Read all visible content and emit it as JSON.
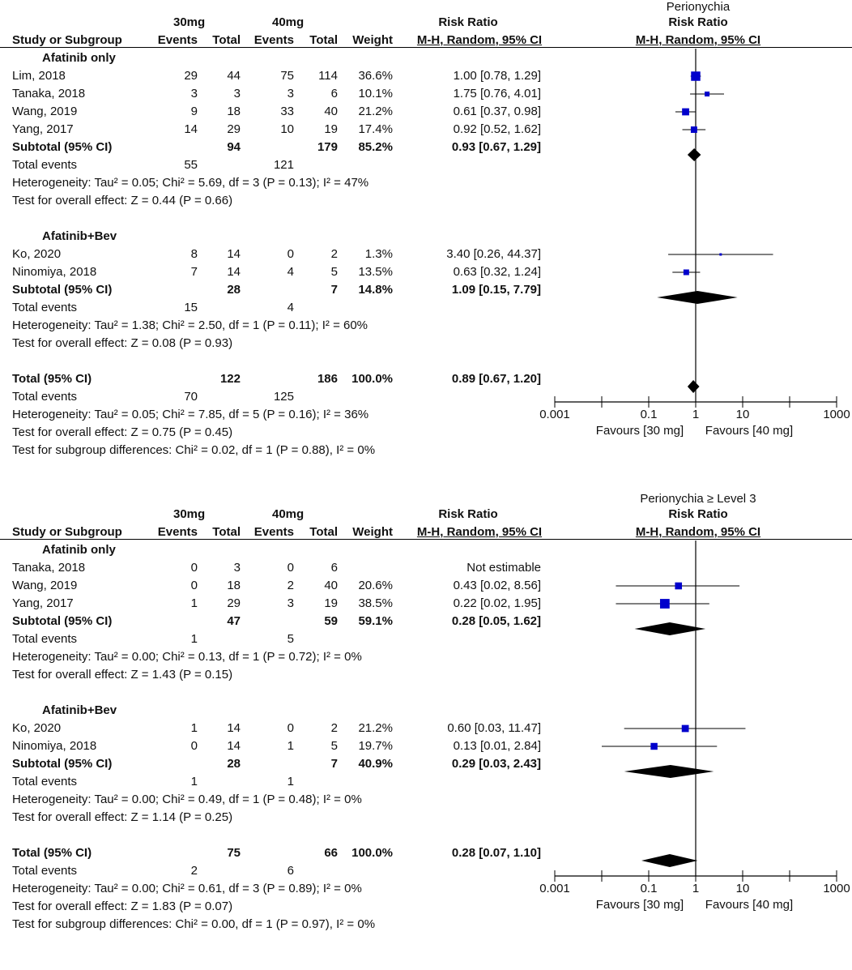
{
  "chart_data": [
    {
      "type": "forest",
      "title": "Perionychia",
      "header": {
        "group1": "30mg",
        "group2": "40mg",
        "col_study": "Study or Subgroup",
        "col_events": "Events",
        "col_total": "Total",
        "col_weight": "Weight",
        "rr_title": "Risk Ratio",
        "rr_method": "M-H, Random, 95% CI",
        "plot_title": "Risk Ratio",
        "plot_method": "M-H, Random, 95% CI"
      },
      "rows": [
        {
          "kind": "subgroup",
          "label": "Afatinib only"
        },
        {
          "kind": "study",
          "label": "Lim, 2018",
          "e1": "29",
          "n1": "44",
          "e2": "75",
          "n2": "114",
          "weight": "36.6%",
          "ci": "1.00 [0.78, 1.29]",
          "rr": 1.0,
          "lo": 0.78,
          "hi": 1.29,
          "w": 36.6
        },
        {
          "kind": "study",
          "label": "Tanaka, 2018",
          "e1": "3",
          "n1": "3",
          "e2": "3",
          "n2": "6",
          "weight": "10.1%",
          "ci": "1.75 [0.76, 4.01]",
          "rr": 1.75,
          "lo": 0.76,
          "hi": 4.01,
          "w": 10.1
        },
        {
          "kind": "study",
          "label": "Wang, 2019",
          "e1": "9",
          "n1": "18",
          "e2": "33",
          "n2": "40",
          "weight": "21.2%",
          "ci": "0.61 [0.37, 0.98]",
          "rr": 0.61,
          "lo": 0.37,
          "hi": 0.98,
          "w": 21.2
        },
        {
          "kind": "study",
          "label": "Yang, 2017",
          "e1": "14",
          "n1": "29",
          "e2": "10",
          "n2": "19",
          "weight": "17.4%",
          "ci": "0.92 [0.52, 1.62]",
          "rr": 0.92,
          "lo": 0.52,
          "hi": 1.62,
          "w": 17.4
        },
        {
          "kind": "subtotal",
          "label": "Subtotal (95% CI)",
          "n1": "94",
          "n2": "179",
          "weight": "85.2%",
          "ci": "0.93 [0.67, 1.29]",
          "rr": 0.93,
          "lo": 0.67,
          "hi": 1.29
        },
        {
          "kind": "events",
          "label": "Total events",
          "e1": "55",
          "e2": "121"
        },
        {
          "kind": "text",
          "label": "Heterogeneity: Tau² = 0.05; Chi² = 5.69, df = 3 (P = 0.13); I² = 47%"
        },
        {
          "kind": "text",
          "label": "Test for overall effect: Z = 0.44 (P = 0.66)"
        },
        {
          "kind": "blank"
        },
        {
          "kind": "subgroup",
          "label": "Afatinib+Bev"
        },
        {
          "kind": "study",
          "label": "Ko, 2020",
          "e1": "8",
          "n1": "14",
          "e2": "0",
          "n2": "2",
          "weight": "1.3%",
          "ci": "3.40 [0.26, 44.37]",
          "rr": 3.4,
          "lo": 0.26,
          "hi": 44.37,
          "w": 1.3
        },
        {
          "kind": "study",
          "label": "Ninomiya, 2018",
          "e1": "7",
          "n1": "14",
          "e2": "4",
          "n2": "5",
          "weight": "13.5%",
          "ci": "0.63 [0.32, 1.24]",
          "rr": 0.63,
          "lo": 0.32,
          "hi": 1.24,
          "w": 13.5
        },
        {
          "kind": "subtotal",
          "label": "Subtotal (95% CI)",
          "n1": "28",
          "n2": "7",
          "weight": "14.8%",
          "ci": "1.09 [0.15, 7.79]",
          "rr": 1.09,
          "lo": 0.15,
          "hi": 7.79
        },
        {
          "kind": "events",
          "label": "Total events",
          "e1": "15",
          "e2": "4"
        },
        {
          "kind": "text",
          "label": "Heterogeneity: Tau² = 1.38; Chi² = 2.50, df = 1 (P = 0.11); I² = 60%"
        },
        {
          "kind": "text",
          "label": "Test for overall effect: Z = 0.08 (P = 0.93)"
        },
        {
          "kind": "blank"
        },
        {
          "kind": "total",
          "label": "Total (95% CI)",
          "n1": "122",
          "n2": "186",
          "weight": "100.0%",
          "ci": "0.89 [0.67, 1.20]",
          "rr": 0.89,
          "lo": 0.67,
          "hi": 1.2
        },
        {
          "kind": "events",
          "label": "Total events",
          "e1": "70",
          "e2": "125"
        },
        {
          "kind": "text",
          "label": "Heterogeneity: Tau² = 0.05; Chi² = 7.85, df = 5 (P = 0.16); I² = 36%"
        },
        {
          "kind": "text",
          "label": "Test for overall effect: Z = 0.75 (P = 0.45)"
        },
        {
          "kind": "text",
          "label": "Test for subgroup differences: Chi² = 0.02, df = 1 (P = 0.88), I² = 0%"
        }
      ],
      "axis": {
        "scale": "log",
        "ticks": [
          "0.001",
          "0.1",
          "1",
          "10",
          "1000"
        ],
        "tick_values": [
          0.001,
          0.1,
          1,
          10,
          1000
        ],
        "favours_left": "Favours [30 mg]",
        "favours_right": "Favours [40 mg]"
      }
    },
    {
      "type": "forest",
      "title": "Perionychia ≥ Level 3",
      "header": {
        "group1": "30mg",
        "group2": "40mg",
        "col_study": "Study or Subgroup",
        "col_events": "Events",
        "col_total": "Total",
        "col_weight": "Weight",
        "rr_title": "Risk Ratio",
        "rr_method": "M-H, Random, 95% CI",
        "plot_title": "Risk Ratio",
        "plot_method": "M-H, Random, 95% CI"
      },
      "rows": [
        {
          "kind": "subgroup",
          "label": "Afatinib only"
        },
        {
          "kind": "study",
          "label": "Tanaka, 2018",
          "e1": "0",
          "n1": "3",
          "e2": "0",
          "n2": "6",
          "weight": "",
          "ci": "Not estimable"
        },
        {
          "kind": "study",
          "label": "Wang, 2019",
          "e1": "0",
          "n1": "18",
          "e2": "2",
          "n2": "40",
          "weight": "20.6%",
          "ci": "0.43 [0.02, 8.56]",
          "rr": 0.43,
          "lo": 0.02,
          "hi": 8.56,
          "w": 20.6
        },
        {
          "kind": "study",
          "label": "Yang, 2017",
          "e1": "1",
          "n1": "29",
          "e2": "3",
          "n2": "19",
          "weight": "38.5%",
          "ci": "0.22 [0.02, 1.95]",
          "rr": 0.22,
          "lo": 0.02,
          "hi": 1.95,
          "w": 38.5
        },
        {
          "kind": "subtotal",
          "label": "Subtotal (95% CI)",
          "n1": "47",
          "n2": "59",
          "weight": "59.1%",
          "ci": "0.28 [0.05, 1.62]",
          "rr": 0.28,
          "lo": 0.05,
          "hi": 1.62
        },
        {
          "kind": "events",
          "label": "Total events",
          "e1": "1",
          "e2": "5"
        },
        {
          "kind": "text",
          "label": "Heterogeneity: Tau² = 0.00; Chi² = 0.13, df = 1 (P = 0.72); I² = 0%"
        },
        {
          "kind": "text",
          "label": "Test for overall effect: Z = 1.43 (P = 0.15)"
        },
        {
          "kind": "blank"
        },
        {
          "kind": "subgroup",
          "label": "Afatinib+Bev"
        },
        {
          "kind": "study",
          "label": "Ko, 2020",
          "e1": "1",
          "n1": "14",
          "e2": "0",
          "n2": "2",
          "weight": "21.2%",
          "ci": "0.60 [0.03, 11.47]",
          "rr": 0.6,
          "lo": 0.03,
          "hi": 11.47,
          "w": 21.2
        },
        {
          "kind": "study",
          "label": "Ninomiya, 2018",
          "e1": "0",
          "n1": "14",
          "e2": "1",
          "n2": "5",
          "weight": "19.7%",
          "ci": "0.13 [0.01, 2.84]",
          "rr": 0.13,
          "lo": 0.01,
          "hi": 2.84,
          "w": 19.7
        },
        {
          "kind": "subtotal",
          "label": "Subtotal (95% CI)",
          "n1": "28",
          "n2": "7",
          "weight": "40.9%",
          "ci": "0.29 [0.03, 2.43]",
          "rr": 0.29,
          "lo": 0.03,
          "hi": 2.43
        },
        {
          "kind": "events",
          "label": "Total events",
          "e1": "1",
          "e2": "1"
        },
        {
          "kind": "text",
          "label": "Heterogeneity: Tau² = 0.00; Chi² = 0.49, df = 1 (P = 0.48); I² = 0%"
        },
        {
          "kind": "text",
          "label": "Test for overall effect: Z = 1.14 (P = 0.25)"
        },
        {
          "kind": "blank"
        },
        {
          "kind": "total",
          "label": "Total (95% CI)",
          "n1": "75",
          "n2": "66",
          "weight": "100.0%",
          "ci": "0.28 [0.07, 1.10]",
          "rr": 0.28,
          "lo": 0.07,
          "hi": 1.1
        },
        {
          "kind": "events",
          "label": "Total events",
          "e1": "2",
          "e2": "6"
        },
        {
          "kind": "text",
          "label": "Heterogeneity: Tau² = 0.00; Chi² = 0.61, df = 3 (P = 0.89); I² = 0%"
        },
        {
          "kind": "text",
          "label": "Test for overall effect: Z = 1.83 (P = 0.07)"
        },
        {
          "kind": "text",
          "label": "Test for subgroup differences: Chi² = 0.00, df = 1 (P = 0.97), I² = 0%"
        }
      ],
      "axis": {
        "scale": "log",
        "ticks": [
          "0.001",
          "0.1",
          "1",
          "10",
          "1000"
        ],
        "tick_values": [
          0.001,
          0.1,
          1,
          10,
          1000
        ],
        "favours_left": "Favours [30 mg]",
        "favours_right": "Favours [40 mg]"
      }
    }
  ]
}
